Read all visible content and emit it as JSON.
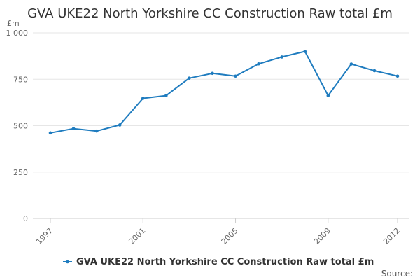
{
  "chart_data": {
    "type": "line",
    "title": "GVA UKE22 North Yorkshire CC Construction Raw total £m",
    "unit_label": "£m",
    "ylim": [
      0,
      1000
    ],
    "y_ticks": [
      {
        "value": 0,
        "label": "0"
      },
      {
        "value": 250,
        "label": "250"
      },
      {
        "value": 500,
        "label": "500"
      },
      {
        "value": 750,
        "label": "750"
      },
      {
        "value": 1000,
        "label": "1 000"
      }
    ],
    "x_range": [
      1997,
      2012
    ],
    "x_ticks": [
      {
        "value": 1997,
        "label": "1997"
      },
      {
        "value": 2001,
        "label": "2001"
      },
      {
        "value": 2005,
        "label": "2005"
      },
      {
        "value": 2009,
        "label": "2009"
      },
      {
        "value": 2012,
        "label": "2012"
      }
    ],
    "grid": true,
    "legend_position": "bottom",
    "series": [
      {
        "name": "GVA UKE22 North Yorkshire CC Construction Raw total £m",
        "color": "#1f7cbf",
        "x": [
          1997,
          1998,
          1999,
          2000,
          2001,
          2002,
          2003,
          2004,
          2005,
          2006,
          2007,
          2008,
          2009,
          2010,
          2011,
          2012
        ],
        "values": [
          461,
          484,
          471,
          504,
          647,
          662,
          756,
          782,
          767,
          833,
          870,
          900,
          662,
          832,
          796,
          767
        ]
      }
    ],
    "source": "Source:"
  }
}
